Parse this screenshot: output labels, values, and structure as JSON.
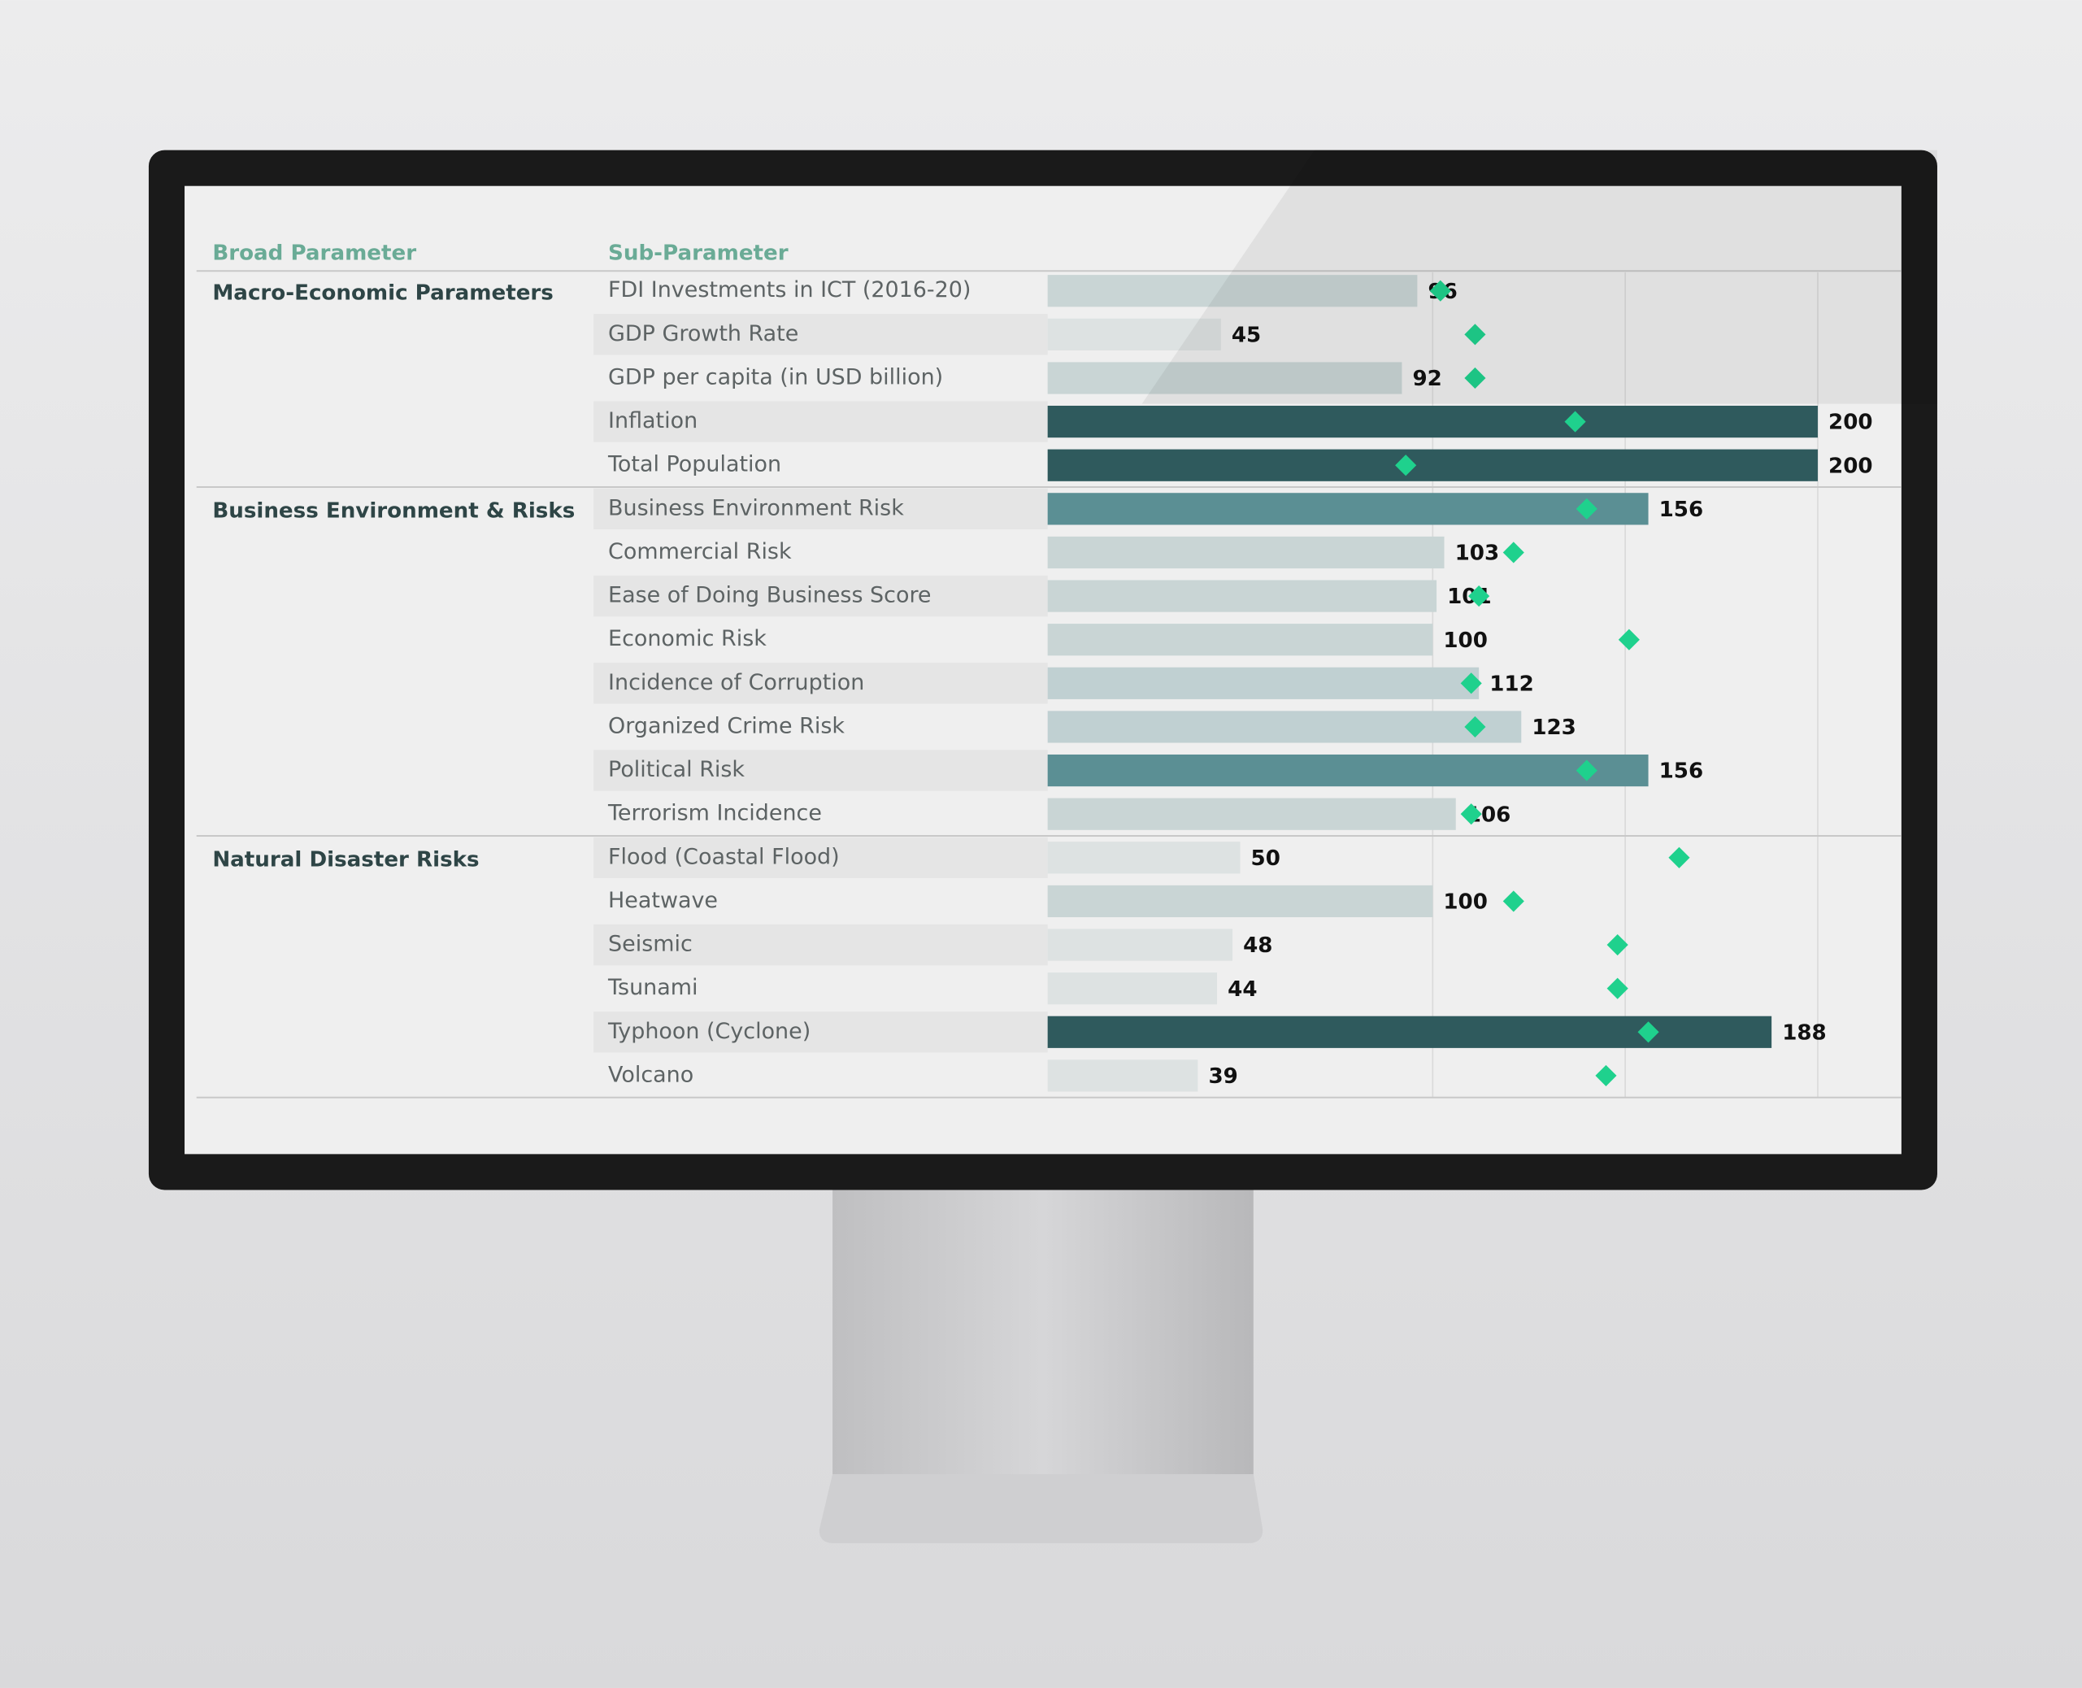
{
  "chart_data": {
    "type": "bar",
    "column_headers": [
      "Broad Parameter",
      "Sub-Parameter"
    ],
    "xlim": [
      0,
      200
    ],
    "gridlines": [
      100,
      150,
      200
    ],
    "marker_color": "#1fd18d",
    "groups": [
      {
        "name": "Macro-Economic Parameters",
        "categories": [
          "FDI Investments in ICT  (2016-20)",
          "GDP Growth Rate",
          "GDP per capita  (in USD billion)",
          "Inflation",
          "Total Population"
        ],
        "values": [
          96,
          45,
          92,
          200,
          200
        ],
        "markers": [
          102,
          111,
          111,
          137,
          93
        ],
        "colors": [
          "#c9d5d5",
          "#dde2e2",
          "#c9d5d5",
          "#2f5a5d",
          "#2f5a5d"
        ]
      },
      {
        "name": "Business Environment & Risks",
        "categories": [
          "Business Environment Risk",
          "Commercial Risk",
          "Ease of Doing Business Score",
          "Economic Risk",
          "Incidence of Corruption",
          "Organized Crime Risk",
          "Political Risk",
          "Terrorism Incidence"
        ],
        "values": [
          156,
          103,
          101,
          100,
          112,
          123,
          156,
          106
        ],
        "markers": [
          140,
          121,
          112,
          151,
          110,
          111,
          140,
          110
        ],
        "colors": [
          "#5b8f94",
          "#c9d5d5",
          "#c9d5d5",
          "#c9d5d5",
          "#c0d0d2",
          "#c0d0d2",
          "#5b8f94",
          "#c9d5d5"
        ]
      },
      {
        "name": "Natural Disaster Risks",
        "categories": [
          "Flood (Coastal Flood)",
          "Heatwave",
          "Seismic",
          "Tsunami",
          "Typhoon (Cyclone)",
          "Volcano"
        ],
        "values": [
          50,
          100,
          48,
          44,
          188,
          39
        ],
        "markers": [
          164,
          121,
          148,
          148,
          156,
          145
        ],
        "colors": [
          "#dde2e2",
          "#c9d5d5",
          "#dde2e2",
          "#dde2e2",
          "#2f5a5d",
          "#dde2e2"
        ]
      }
    ]
  }
}
